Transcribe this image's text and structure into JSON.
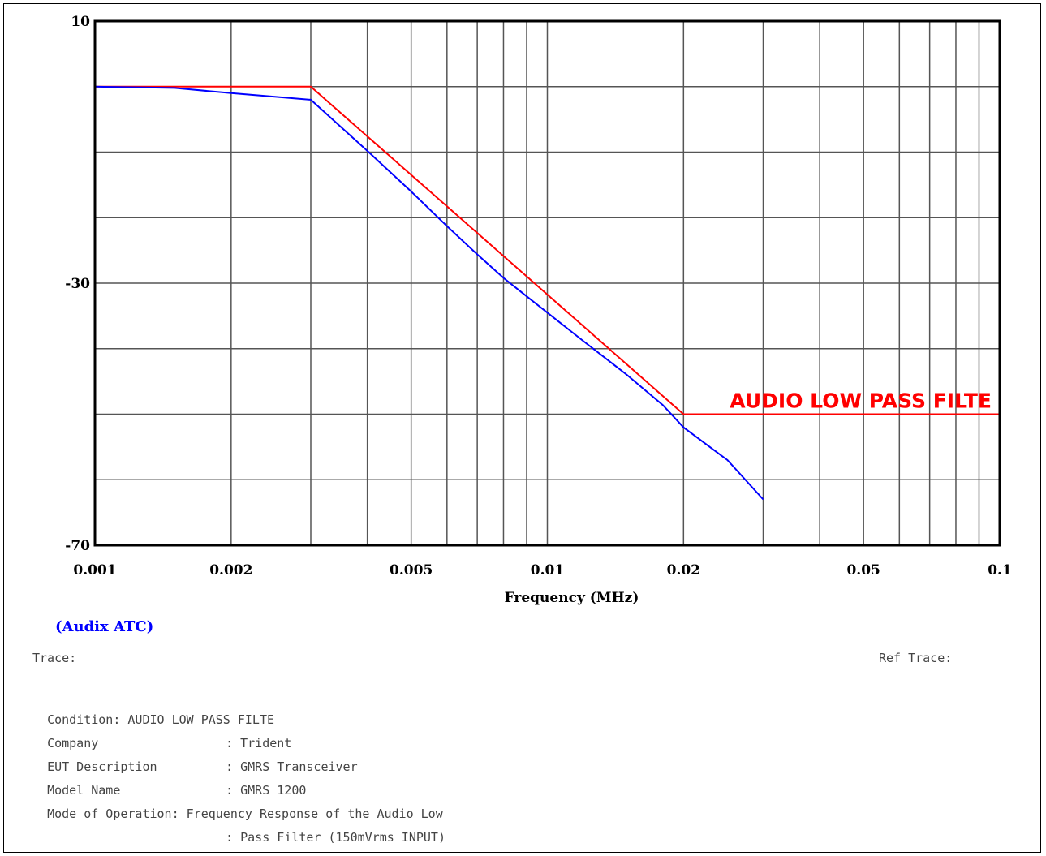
{
  "chart_data": {
    "type": "line",
    "x_scale": "log",
    "xlim": [
      0.001,
      0.1
    ],
    "ylim": [
      -70,
      10
    ],
    "xlabel": "Frequency (MHz)",
    "ylabel": "",
    "x_tick_labels": [
      "0.001",
      "0.002",
      "0.005",
      "0.01",
      "0.02",
      "0.05",
      "0.1"
    ],
    "x_ticks": [
      0.001,
      0.002,
      0.005,
      0.01,
      0.02,
      0.05,
      0.1
    ],
    "y_tick_labels": [
      "10",
      "-30",
      "-70"
    ],
    "y_ticks": [
      10,
      -30,
      -70
    ],
    "x_grid": [
      0.002,
      0.003,
      0.004,
      0.005,
      0.006,
      0.007,
      0.008,
      0.009,
      0.01,
      0.02,
      0.03,
      0.04,
      0.05,
      0.06,
      0.07,
      0.08,
      0.09
    ],
    "y_grid": [
      0,
      -10,
      -20,
      -30,
      -40,
      -50,
      -60
    ],
    "grid": true,
    "series": [
      {
        "name": "AUDIO LOW PASS FILTE",
        "color": "#ff0000",
        "x": [
          0.001,
          0.003,
          0.02,
          0.1
        ],
        "y": [
          0,
          0,
          -50,
          -50
        ]
      },
      {
        "color": "#0000ff",
        "x": [
          0.001,
          0.0015,
          0.002,
          0.003,
          0.004,
          0.005,
          0.006,
          0.007,
          0.008,
          0.009,
          0.01,
          0.012,
          0.015,
          0.018,
          0.02,
          0.025,
          0.03
        ],
        "y": [
          0,
          -0.2,
          -1,
          -2,
          -9.8,
          -16,
          -21.3,
          -25.6,
          -29.2,
          -32,
          -34.5,
          -38.8,
          -44,
          -48.6,
          -52,
          -57,
          -63
        ]
      }
    ],
    "annotation": {
      "text": "AUDIO LOW PASS FILTE",
      "color": "#ff0000"
    }
  },
  "brand_label": "(Audix ATC)",
  "brand_color": "#0000ff",
  "trace_label": "Trace:",
  "ref_trace_label": "Ref Trace:",
  "info": {
    "condition": "Condition: AUDIO LOW PASS FILTE",
    "company_key": "Company",
    "company_val": ": Trident",
    "eut_key": "EUT Description",
    "eut_val": ": GMRS Transceiver",
    "model_key": "Model Name",
    "model_val": ": GMRS 1200",
    "mode_key": "Mode of Operation:",
    "mode_val_1": "Frequency Response of the Audio Low",
    "mode_val_2": ": Pass Filter (150mVrms INPUT)"
  }
}
